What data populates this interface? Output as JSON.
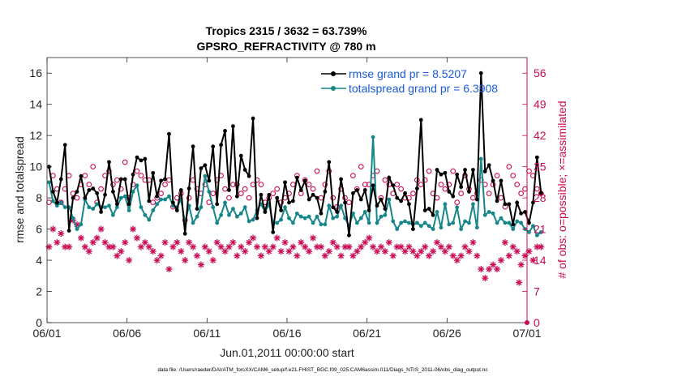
{
  "chart_data": {
    "type": "line",
    "title": "Tropics 2315 / 3632 = 63.739%",
    "subtitle": "GPSRO_REFRACTIVITY @ 780 m",
    "xlabel": "Jun.01,2011 00:00:00 start",
    "ylabel_left": "rmse and totalspread",
    "ylabel_right": "# of obs: o=possible; ×=assimilated",
    "footer": "data file: /Users/raeder/DAI/ATM_forcXX/CAM6_setup/f.e21.FHIST_BGC.f09_025.CAM6assim.011/Diags_NTrS_2011-06/obs_diag_output.nc",
    "x_range_days": [
      0,
      30
    ],
    "xticks": [
      {
        "day": 0,
        "label": "06/01"
      },
      {
        "day": 5,
        "label": "06/06"
      },
      {
        "day": 10,
        "label": "06/11"
      },
      {
        "day": 15,
        "label": "06/16"
      },
      {
        "day": 20,
        "label": "06/21"
      },
      {
        "day": 25,
        "label": "06/26"
      },
      {
        "day": 30,
        "label": "07/01"
      }
    ],
    "ylim_left": [
      0,
      17
    ],
    "yticks_left": [
      {
        "value": 0,
        "label": "0"
      },
      {
        "value": 2,
        "label": "2"
      },
      {
        "value": 4,
        "label": "4"
      },
      {
        "value": 6,
        "label": "6"
      },
      {
        "value": 8,
        "label": "8"
      },
      {
        "value": 10,
        "label": "10"
      },
      {
        "value": 12,
        "label": "12"
      },
      {
        "value": 14,
        "label": "14"
      },
      {
        "value": 16,
        "label": "16"
      }
    ],
    "ylim_right": [
      0,
      59.5
    ],
    "yticks_right": [
      {
        "value": 0,
        "label": "0"
      },
      {
        "value": 7,
        "label": "7"
      },
      {
        "value": 14,
        "label": "14"
      },
      {
        "value": 21,
        "label": "21"
      },
      {
        "value": 28,
        "label": "28"
      },
      {
        "value": 35,
        "label": "35"
      },
      {
        "value": 42,
        "label": "42"
      },
      {
        "value": 49,
        "label": "49"
      },
      {
        "value": 56,
        "label": "56"
      }
    ],
    "x_step_days": 0.25,
    "series": [
      {
        "name": "rmse grand pr = 8.5207",
        "axis": "left",
        "color": "#000000",
        "marker": "filled-circle",
        "values": [
          10.0,
          8.4,
          7.7,
          9.2,
          11.4,
          5.9,
          8.0,
          8.4,
          9.4,
          8.0,
          8.5,
          8.6,
          8.3,
          7.1,
          8.2,
          10.3,
          8.4,
          7.6,
          9.2,
          9.2,
          7.6,
          9.5,
          10.6,
          10.4,
          10.5,
          7.8,
          9.6,
          8.1,
          9.1,
          9.2,
          12.1,
          7.7,
          7.2,
          8.5,
          5.7,
          8.6,
          11.3,
          7.3,
          9.9,
          10.1,
          9.1,
          11.3,
          7.6,
          11.4,
          12.3,
          8.5,
          12.6,
          8.1,
          10.7,
          9.8,
          9.4,
          13.1,
          6.7,
          8.2,
          7.1,
          8.2,
          5.8,
          8.0,
          7.2,
          9.0,
          7.7,
          7.8,
          9.3,
          8.5,
          9.1,
          7.9,
          8.2,
          8.0,
          7.0,
          8.4,
          10.3,
          7.4,
          7.1,
          9.2,
          7.7,
          5.6,
          8.3,
          8.5,
          7.9,
          8.5,
          7.2,
          8.8,
          7.5,
          7.9,
          7.3,
          9.3,
          8.8,
          8.0,
          7.8,
          8.3,
          7.6,
          6.0,
          8.6,
          13.0,
          7.2,
          7.3,
          6.9,
          9.8,
          9.5,
          9.6,
          8.4,
          8.1,
          9.5,
          8.7,
          9.8,
          8.4,
          9.8,
          7.9,
          16.0,
          9.7,
          10.1,
          9.1,
          7.8,
          9.1,
          7.6,
          7.6,
          6.3,
          7.7,
          7.0,
          7.1,
          6.4,
          7.7,
          10.6,
          8.3
        ]
      },
      {
        "name": "totalspread grand pr = 6.3908",
        "axis": "left",
        "color": "#16868a",
        "marker": "filled-circle",
        "values": [
          9.0,
          7.8,
          7.5,
          7.7,
          7.4,
          7.4,
          6.7,
          6.0,
          6.3,
          7.9,
          7.4,
          7.3,
          7.6,
          7.4,
          7.4,
          7.5,
          6.9,
          7.4,
          8.0,
          8.1,
          7.2,
          8.4,
          8.8,
          7.4,
          6.9,
          6.6,
          7.2,
          7.6,
          7.9,
          7.9,
          8.1,
          7.5,
          7.4,
          7.9,
          6.4,
          7.5,
          6.4,
          6.8,
          7.4,
          9.4,
          8.4,
          7.4,
          6.4,
          6.9,
          7.7,
          6.9,
          7.3,
          6.8,
          7.0,
          7.4,
          6.5,
          6.6,
          7.2,
          7.6,
          7.1,
          7.6,
          6.4,
          6.4,
          6.6,
          7.4,
          6.7,
          6.4,
          7.0,
          6.8,
          6.7,
          6.8,
          6.4,
          6.8,
          6.3,
          6.3,
          7.5,
          6.7,
          6.8,
          7.5,
          6.7,
          6.2,
          7.0,
          6.4,
          6.7,
          7.1,
          6.4,
          11.9,
          6.4,
          6.8,
          6.9,
          7.9,
          6.5,
          6.0,
          6.4,
          6.5,
          6.4,
          6.3,
          6.4,
          6.2,
          6.4,
          6.2,
          6.0,
          7.1,
          6.1,
          7.6,
          6.3,
          6.4,
          7.4,
          6.0,
          6.5,
          6.4,
          7.6,
          6.1,
          10.5,
          6.9,
          7.1,
          7.0,
          6.4,
          6.7,
          6.4,
          6.4,
          6.0,
          6.5,
          6.4,
          6.0,
          5.8,
          6.2,
          5.6,
          5.8
        ]
      },
      {
        "name": "# obs possible",
        "axis": "right",
        "color": "#cc0a55",
        "marker": "open-circle",
        "values": [
          27,
          33,
          30,
          27,
          30,
          33,
          29,
          28,
          31,
          33,
          31,
          35,
          27,
          30,
          33,
          34,
          31,
          32,
          30,
          36,
          28,
          31,
          34,
          33,
          32,
          32,
          27,
          28,
          29,
          31,
          32,
          26,
          28,
          29,
          23,
          28,
          32,
          30,
          29,
          31,
          27,
          29,
          32,
          33,
          30,
          28,
          31,
          31,
          29,
          30,
          28,
          31,
          32,
          31,
          27,
          28,
          29,
          30,
          27,
          28,
          29,
          31,
          33,
          29,
          32,
          31,
          30,
          34,
          28,
          31,
          34,
          28,
          26,
          30,
          28,
          27,
          33,
          30,
          35,
          31,
          31,
          33,
          34,
          28,
          32,
          31,
          29,
          31,
          30,
          28,
          28,
          29,
          32,
          31,
          32,
          34,
          29,
          28,
          31,
          30,
          31,
          34,
          27,
          29,
          33,
          30,
          28,
          29,
          32,
          31,
          29,
          31,
          33,
          28,
          26,
          35,
          33,
          31,
          29,
          30,
          34,
          33,
          30,
          29
        ]
      },
      {
        "name": "# obs assimilated",
        "axis": "right",
        "color": "#cc0a55",
        "marker": "asterisk",
        "values": [
          17,
          21,
          18,
          20,
          17,
          17,
          23,
          22,
          19,
          17,
          16,
          18,
          19,
          21,
          18,
          17,
          17,
          15,
          16,
          18,
          14,
          21,
          19,
          17,
          18,
          17,
          16,
          14,
          15,
          18,
          12,
          17,
          18,
          16,
          14,
          18,
          17,
          15,
          13,
          17,
          16,
          14,
          18,
          17,
          16,
          17,
          18,
          15,
          17,
          16,
          18,
          19,
          17,
          15,
          17,
          16,
          17,
          19,
          16,
          18,
          16,
          17,
          15,
          18,
          17,
          16,
          19,
          17,
          17,
          15,
          16,
          18,
          17,
          15,
          17,
          17,
          15,
          16,
          17,
          18,
          19,
          17,
          16,
          17,
          16,
          18,
          15,
          17,
          17,
          16,
          17,
          16,
          15,
          16,
          17,
          15,
          16,
          18,
          17,
          16,
          17,
          15,
          14,
          15,
          17,
          16,
          18,
          15,
          12,
          10,
          12,
          13,
          12,
          14,
          18,
          15,
          17,
          16,
          13,
          15,
          16,
          14,
          17,
          17
        ]
      }
    ],
    "series_point_extras": {
      "assimilated_at_end": {
        "day": 30,
        "value": 0
      },
      "assimilated_at_end2": {
        "day": 29.5,
        "value": 9
      }
    }
  }
}
